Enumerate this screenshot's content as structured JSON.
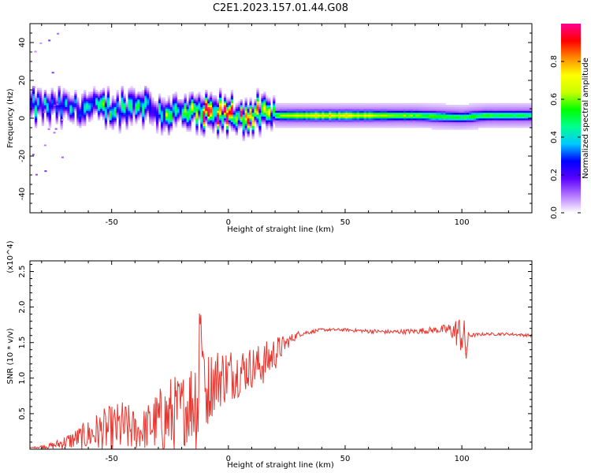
{
  "title": "C2E1.2023.157.01.44.G08",
  "chart_data": [
    {
      "type": "heatmap",
      "name": "spectrogram",
      "xlabel": "Height of straight line (km)",
      "ylabel": "Frequency (Hz)",
      "xlim": [
        -85,
        130
      ],
      "ylim": [
        -50,
        50
      ],
      "xticks": [
        -50,
        0,
        50,
        100
      ],
      "yticks": [
        -40,
        -20,
        0,
        20,
        40
      ],
      "colorbar": {
        "label": "Normalized spectral amplitude",
        "range": [
          0.0,
          1.0
        ],
        "ticks": [
          0.0,
          0.2,
          0.4,
          0.6,
          0.8
        ],
        "colors": [
          "#ffffff",
          "#b478ff",
          "#5a00ff",
          "#0000ff",
          "#00c8ff",
          "#00ff90",
          "#00ff00",
          "#c8ff00",
          "#ffff00",
          "#ff8c00",
          "#ff0000",
          "#ff0090"
        ]
      },
      "band": {
        "x": [
          -85,
          -70,
          -55,
          -45,
          -38,
          -30,
          -20,
          -12,
          -5,
          0,
          10,
          20,
          40,
          60,
          80,
          100,
          110,
          130
        ],
        "center_hz": [
          6,
          5,
          5,
          4,
          8,
          3,
          2,
          2,
          1,
          1,
          1,
          1,
          1,
          1,
          1,
          0,
          1,
          1
        ],
        "peak_amp": [
          0.35,
          0.4,
          0.45,
          0.4,
          0.5,
          0.45,
          0.55,
          0.85,
          0.9,
          0.85,
          0.8,
          0.6,
          0.75,
          0.7,
          0.6,
          0.55,
          0.55,
          0.5
        ]
      }
    },
    {
      "type": "line",
      "name": "snr",
      "xlabel": "Height of straight line (km)",
      "ylabel": "SNR (10 * v/v)",
      "scale_label": "(x10^4)",
      "xlim": [
        -85,
        130
      ],
      "ylim": [
        0,
        2.65
      ],
      "xticks": [
        -50,
        0,
        50,
        100
      ],
      "yticks": [
        0.5,
        1.0,
        1.5,
        2.0,
        2.5
      ],
      "line_color": "#e8352e",
      "series": [
        {
          "name": "SNR",
          "x": [
            -85,
            -75,
            -65,
            -55,
            -45,
            -38,
            -30,
            -25,
            -20,
            -15,
            -12,
            -11,
            -8,
            -5,
            0,
            5,
            10,
            15,
            20,
            25,
            30,
            40,
            50,
            60,
            70,
            80,
            90,
            95,
            100,
            102,
            103,
            110,
            120,
            130
          ],
          "base": [
            0.02,
            0.05,
            0.15,
            0.25,
            0.3,
            0.25,
            0.4,
            0.45,
            0.55,
            0.7,
            0.8,
            0.7,
            0.9,
            1.0,
            1.05,
            1.1,
            1.15,
            1.2,
            1.35,
            1.5,
            1.62,
            1.68,
            1.68,
            1.66,
            1.65,
            1.66,
            1.68,
            1.68,
            1.62,
            1.4,
            1.6,
            1.62,
            1.62,
            1.6
          ],
          "amp": [
            0.0,
            0.05,
            0.15,
            0.3,
            0.4,
            0.25,
            0.45,
            0.6,
            0.5,
            0.65,
            1.3,
            0.6,
            0.5,
            0.45,
            0.4,
            0.35,
            0.3,
            0.3,
            0.25,
            0.1,
            0.04,
            0.02,
            0.02,
            0.03,
            0.03,
            0.04,
            0.05,
            0.1,
            0.3,
            0.35,
            0.03,
            0.02,
            0.02,
            0.02
          ]
        }
      ]
    }
  ]
}
